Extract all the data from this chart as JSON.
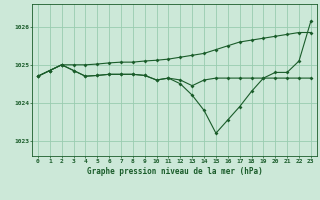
{
  "title": "Graphe pression niveau de la mer (hPa)",
  "background_color": "#cce8d8",
  "grid_color": "#99ccb0",
  "line_color": "#1a5c2a",
  "xlim": [
    -0.5,
    23.5
  ],
  "ylim": [
    1022.6,
    1026.6
  ],
  "yticks": [
    1023,
    1024,
    1025,
    1026
  ],
  "xticks": [
    0,
    1,
    2,
    3,
    4,
    5,
    6,
    7,
    8,
    9,
    10,
    11,
    12,
    13,
    14,
    15,
    16,
    17,
    18,
    19,
    20,
    21,
    22,
    23
  ],
  "series": [
    {
      "x": [
        0,
        1,
        2,
        3,
        4,
        5,
        6,
        7,
        8,
        9,
        10,
        11,
        12,
        13,
        14,
        15,
        16,
        17,
        18,
        19,
        20,
        21,
        22,
        23
      ],
      "y": [
        1024.7,
        1024.85,
        1025.0,
        1024.85,
        1024.7,
        1024.72,
        1024.75,
        1024.75,
        1024.75,
        1024.72,
        1024.6,
        1024.65,
        1024.6,
        1024.45,
        1024.6,
        1024.65,
        1024.65,
        1024.65,
        1024.65,
        1024.65,
        1024.65,
        1024.65,
        1024.65,
        1024.65
      ],
      "has_markers": true
    },
    {
      "x": [
        0,
        1,
        2,
        3,
        4,
        5,
        6,
        7,
        8,
        9,
        10,
        11,
        12,
        13,
        14,
        15,
        16,
        17,
        18,
        19,
        20,
        21,
        22,
        23
      ],
      "y": [
        1024.7,
        1024.85,
        1025.0,
        1024.85,
        1024.7,
        1024.72,
        1024.75,
        1024.75,
        1024.75,
        1024.72,
        1024.6,
        1024.65,
        1024.5,
        1024.2,
        1023.8,
        1023.2,
        1023.55,
        1023.9,
        1024.3,
        1024.65,
        1024.8,
        1024.8,
        1025.1,
        1026.15
      ],
      "has_markers": true
    },
    {
      "x": [
        0,
        1,
        2,
        3,
        4,
        5,
        6,
        7,
        8,
        9,
        10,
        11,
        12,
        13,
        14,
        15,
        16,
        17,
        18,
        19,
        20,
        21,
        22,
        23
      ],
      "y": [
        1024.7,
        1024.85,
        1025.0,
        1025.0,
        1025.0,
        1025.02,
        1025.05,
        1025.07,
        1025.07,
        1025.1,
        1025.12,
        1025.15,
        1025.2,
        1025.25,
        1025.3,
        1025.4,
        1025.5,
        1025.6,
        1025.65,
        1025.7,
        1025.75,
        1025.8,
        1025.85,
        1025.85
      ],
      "has_markers": true
    }
  ]
}
